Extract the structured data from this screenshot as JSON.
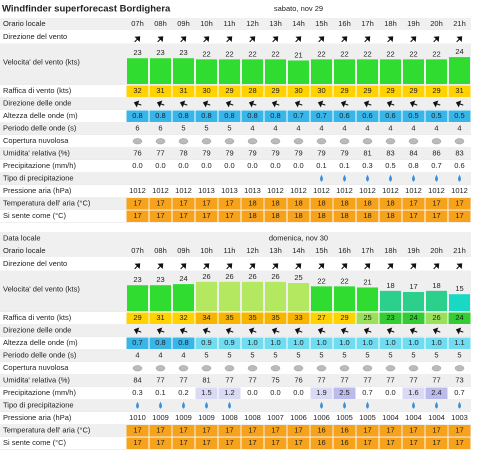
{
  "title": "Windfinder superforecast Bordighera",
  "days": [
    {
      "date": "sabato, nov 29",
      "time_label": "Orario locale",
      "times": [
        "07h",
        "08h",
        "09h",
        "10h",
        "11h",
        "12h",
        "13h",
        "14h",
        "15h",
        "16h",
        "17h",
        "18h",
        "19h",
        "20h",
        "21h"
      ],
      "wind_direction": {
        "label": "Direzione del vento"
      },
      "wind_speed": {
        "label": "Velocita' del vento (kts)",
        "values": [
          23,
          23,
          23,
          22,
          22,
          22,
          22,
          21,
          22,
          22,
          22,
          22,
          22,
          22,
          24
        ]
      },
      "gusts": {
        "label": "Raffica di vento (kts)",
        "values": [
          32,
          31,
          31,
          30,
          29,
          28,
          29,
          30,
          30,
          29,
          29,
          29,
          29,
          29,
          31
        ]
      },
      "wave_direction": {
        "label": "Direzione delle onde"
      },
      "wave_height": {
        "label": "Altezza delle onde (m)",
        "values": [
          0.8,
          0.8,
          0.8,
          0.8,
          0.8,
          0.8,
          0.8,
          0.7,
          0.7,
          0.6,
          0.6,
          0.6,
          0.5,
          0.5,
          0.5
        ],
        "value_labels": [
          "0.8",
          "0.8",
          "0.8",
          "0.8",
          "0.8",
          "0.8",
          "0.8",
          "0.7",
          "0.7",
          "0.6",
          "0.6",
          "0.6",
          "0.5",
          "0.5",
          "0.5"
        ]
      },
      "wave_period": {
        "label": "Periodo delle onde (s)",
        "values": [
          6,
          6,
          5,
          5,
          5,
          4,
          4,
          4,
          4,
          4,
          4,
          4,
          4,
          4,
          4
        ]
      },
      "cloud_cover": {
        "label": "Copertura nuvolosa"
      },
      "humidity": {
        "label": "Umidita' relativa (%)",
        "values": [
          76,
          77,
          78,
          79,
          79,
          79,
          79,
          79,
          79,
          79,
          81,
          83,
          84,
          86,
          83
        ]
      },
      "precipitation": {
        "label": "Precipitazione (mm/h)",
        "values": [
          0.0,
          0.0,
          0.0,
          0.0,
          0.0,
          0.0,
          0.0,
          0.0,
          0.1,
          0.1,
          0.3,
          0.5,
          0.8,
          0.7,
          0.6
        ],
        "value_labels": [
          "0.0",
          "0.0",
          "0.0",
          "0.0",
          "0.0",
          "0.0",
          "0.0",
          "0.0",
          "0.1",
          "0.1",
          "0.3",
          "0.5",
          "0.8",
          "0.7",
          "0.6"
        ]
      },
      "precipitation_type": {
        "label": "Tipo di precipitazione"
      },
      "pressure": {
        "label": "Pressione aria (hPa)",
        "values": [
          1012,
          1012,
          1012,
          1013,
          1013,
          1013,
          1012,
          1012,
          1012,
          1012,
          1012,
          1012,
          1012,
          1012,
          1012
        ]
      },
      "temperature": {
        "label": "Temperatura dell' aria (°C)",
        "values": [
          17,
          17,
          17,
          17,
          17,
          18,
          18,
          18,
          18,
          18,
          18,
          18,
          17,
          17,
          17
        ]
      },
      "feels_like": {
        "label": "Si sente come (°C)",
        "values": [
          17,
          17,
          17,
          17,
          17,
          18,
          18,
          18,
          18,
          18,
          18,
          18,
          17,
          17,
          17
        ]
      }
    },
    {
      "date_label": "Data locale",
      "date": "domenica, nov 30",
      "time_label": "Orario locale",
      "times": [
        "07h",
        "08h",
        "09h",
        "10h",
        "11h",
        "12h",
        "13h",
        "14h",
        "15h",
        "16h",
        "17h",
        "18h",
        "19h",
        "20h",
        "21h"
      ],
      "wind_direction": {
        "label": "Direzione del vento"
      },
      "wind_speed": {
        "label": "Velocita' del vento (kts)",
        "values": [
          23,
          23,
          24,
          26,
          26,
          26,
          26,
          25,
          22,
          22,
          21,
          18,
          17,
          18,
          15
        ]
      },
      "gusts": {
        "label": "Raffica di vento (kts)",
        "values": [
          29,
          31,
          32,
          34,
          35,
          35,
          35,
          33,
          27,
          29,
          25,
          23,
          24,
          26,
          24
        ]
      },
      "wave_direction": {
        "label": "Direzione delle onde"
      },
      "wave_height": {
        "label": "Altezza delle onde (m)",
        "values": [
          0.7,
          0.8,
          0.8,
          0.9,
          0.9,
          1.0,
          1.0,
          1.0,
          1.0,
          1.0,
          1.0,
          1.0,
          1.0,
          1.0,
          1.1
        ],
        "value_labels": [
          "0.7",
          "0.8",
          "0.8",
          "0.9",
          "0.9",
          "1.0",
          "1.0",
          "1.0",
          "1.0",
          "1.0",
          "1.0",
          "1.0",
          "1.0",
          "1.0",
          "1.1"
        ]
      },
      "wave_period": {
        "label": "Periodo delle onde (s)",
        "values": [
          4,
          4,
          4,
          5,
          5,
          5,
          5,
          5,
          5,
          5,
          5,
          5,
          5,
          5,
          5
        ]
      },
      "cloud_cover": {
        "label": "Copertura nuvolosa"
      },
      "humidity": {
        "label": "Umidita' relativa (%)",
        "values": [
          84,
          77,
          77,
          81,
          77,
          77,
          75,
          76,
          77,
          77,
          77,
          77,
          77,
          77,
          73
        ]
      },
      "precipitation": {
        "label": "Precipitazione (mm/h)",
        "values": [
          0.3,
          0.1,
          0.2,
          1.5,
          1.2,
          0.0,
          0.0,
          0.0,
          1.9,
          2.5,
          0.7,
          0.0,
          1.6,
          2.4,
          0.7
        ],
        "value_labels": [
          "0.3",
          "0.1",
          "0.2",
          "1.5",
          "1.2",
          "0.0",
          "0.0",
          "0.0",
          "1.9",
          "2.5",
          "0.7",
          "0.0",
          "1.6",
          "2.4",
          "0.7"
        ]
      },
      "precipitation_type": {
        "label": "Tipo di precipitazione"
      },
      "pressure": {
        "label": "Pressione aria (hPa)",
        "values": [
          1010,
          1009,
          1009,
          1009,
          1008,
          1008,
          1007,
          1006,
          1006,
          1005,
          1005,
          1004,
          1004,
          1004,
          1003
        ]
      },
      "temperature": {
        "label": "Temperatura dell' aria (°C)",
        "values": [
          17,
          17,
          17,
          17,
          17,
          17,
          17,
          17,
          16,
          16,
          17,
          17,
          17,
          17,
          17
        ]
      },
      "feels_like": {
        "label": "Si sente come (°C)",
        "values": [
          17,
          17,
          17,
          17,
          17,
          17,
          17,
          17,
          16,
          16,
          17,
          17,
          17,
          17,
          17
        ]
      }
    }
  ]
}
